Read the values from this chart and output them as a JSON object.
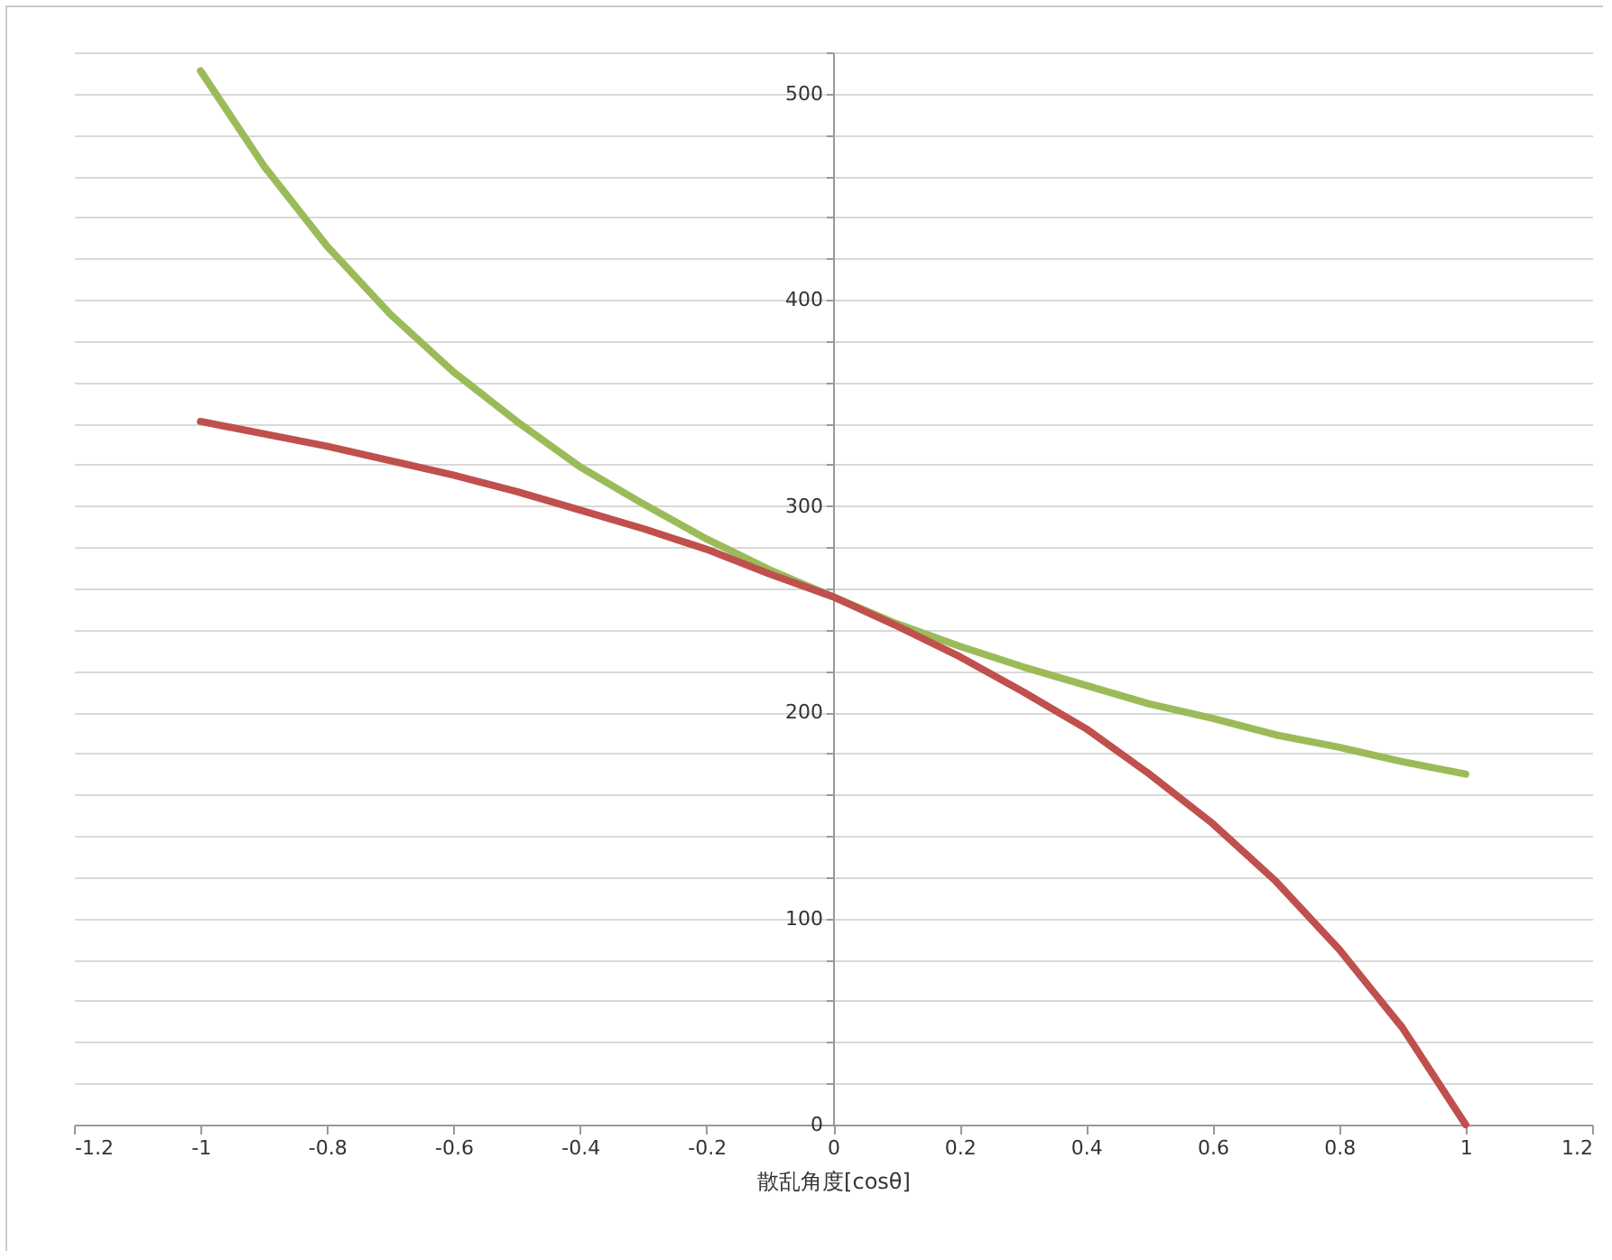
{
  "chart_data": {
    "type": "line",
    "xlabel": "散乱角度[cosθ]",
    "x": [
      -1,
      -0.9,
      -0.8,
      -0.7,
      -0.6,
      -0.5,
      -0.4,
      -0.3,
      -0.2,
      -0.1,
      0,
      0.1,
      0.2,
      0.3,
      0.4,
      0.5,
      0.6,
      0.7,
      0.8,
      0.9,
      1
    ],
    "series": [
      {
        "color": "#9bbb59",
        "values": [
          511,
          465,
          426,
          393,
          365,
          341,
          319,
          301,
          284,
          269,
          256,
          243,
          232,
          222,
          213,
          204,
          197,
          189,
          183,
          176,
          170
        ]
      },
      {
        "color": "#c0504d",
        "values": [
          341,
          335,
          329,
          322,
          315,
          307,
          298,
          289,
          279,
          267,
          256,
          242,
          227,
          210,
          192,
          170,
          146,
          118,
          85,
          47,
          0
        ]
      }
    ],
    "xlim": [
      -1.2,
      1.2
    ],
    "xticks": [
      -1.2,
      -1,
      -0.8,
      -0.6,
      -0.4,
      -0.2,
      0,
      0.2,
      0.4,
      0.6,
      0.8,
      1,
      1.2
    ],
    "ylim": [
      0,
      520
    ],
    "yticks": [
      0,
      {
        "value": 20,
        "label": null
      },
      {
        "value": 40,
        "label": null
      },
      {
        "value": 60,
        "label": null
      },
      {
        "value": 80,
        "label": null
      },
      100,
      {
        "value": 120,
        "label": null
      },
      {
        "value": 140,
        "label": null
      },
      {
        "value": 160,
        "label": null
      },
      {
        "value": 180,
        "label": null
      },
      200,
      {
        "value": 220,
        "label": null
      },
      {
        "value": 240,
        "label": null
      },
      {
        "value": 260,
        "label": null
      },
      {
        "value": 280,
        "label": null
      },
      300,
      {
        "value": 320,
        "label": null
      },
      {
        "value": 340,
        "label": null
      },
      {
        "value": 360,
        "label": null
      },
      {
        "value": 380,
        "label": null
      },
      400,
      {
        "value": 420,
        "label": null
      },
      {
        "value": 440,
        "label": null
      },
      {
        "value": 460,
        "label": null
      },
      {
        "value": 480,
        "label": null
      },
      500,
      {
        "value": 520,
        "label": null
      }
    ],
    "grid": "y",
    "legend": false,
    "marker": "none",
    "line_style": "solid"
  }
}
